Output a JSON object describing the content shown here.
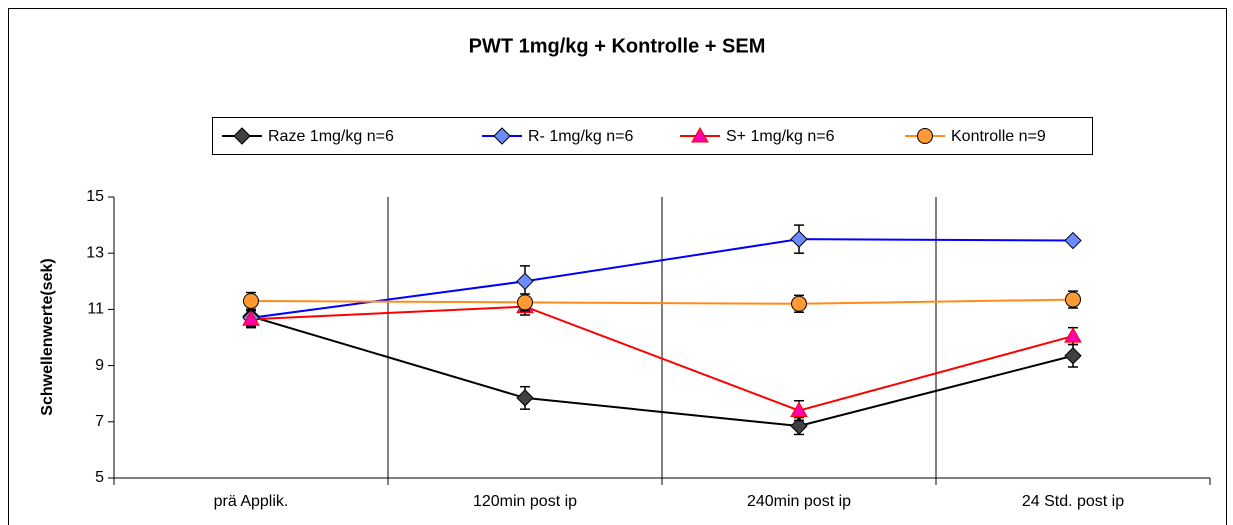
{
  "chart_data": {
    "type": "line",
    "title": "PWT 1mg/kg + Kontrolle + SEM",
    "y_label": "Schwellenwerte(sek)",
    "categories": [
      "prä Applik.",
      "120min post ip",
      "240min post ip",
      "24 Std. post ip"
    ],
    "series": [
      {
        "name": "Raze 1mg/kg n=6",
        "color": "#000000",
        "marker": "diamond",
        "marker_color": "#404040",
        "values": [
          10.75,
          7.85,
          6.85,
          9.35
        ],
        "errors": [
          0.35,
          0.4,
          0.3,
          0.4
        ]
      },
      {
        "name": "R- 1mg/kg n=6",
        "color": "#0000ff",
        "marker": "diamond",
        "marker_color": "#6a8cff",
        "values": [
          10.7,
          12.0,
          13.5,
          13.45
        ],
        "errors": [
          0.3,
          0.55,
          0.5,
          0.1
        ]
      },
      {
        "name": "S+ 1mg/kg n=6",
        "color": "#ff0000",
        "marker": "triangle",
        "marker_color": "#ff00aa",
        "values": [
          10.65,
          11.1,
          7.4,
          10.05
        ],
        "errors": [
          0.3,
          0.3,
          0.35,
          0.3
        ]
      },
      {
        "name": "Kontrolle n=9",
        "color": "#ff8c1a",
        "marker": "circle",
        "marker_color": "#ff9933",
        "values": [
          11.3,
          11.25,
          11.2,
          11.35
        ],
        "errors": [
          0.3,
          0.3,
          0.3,
          0.3
        ]
      }
    ],
    "ylim": [
      5,
      15
    ],
    "yticks": [
      5,
      7,
      9,
      11,
      13,
      15
    ],
    "grid": "x",
    "legend": "top"
  }
}
